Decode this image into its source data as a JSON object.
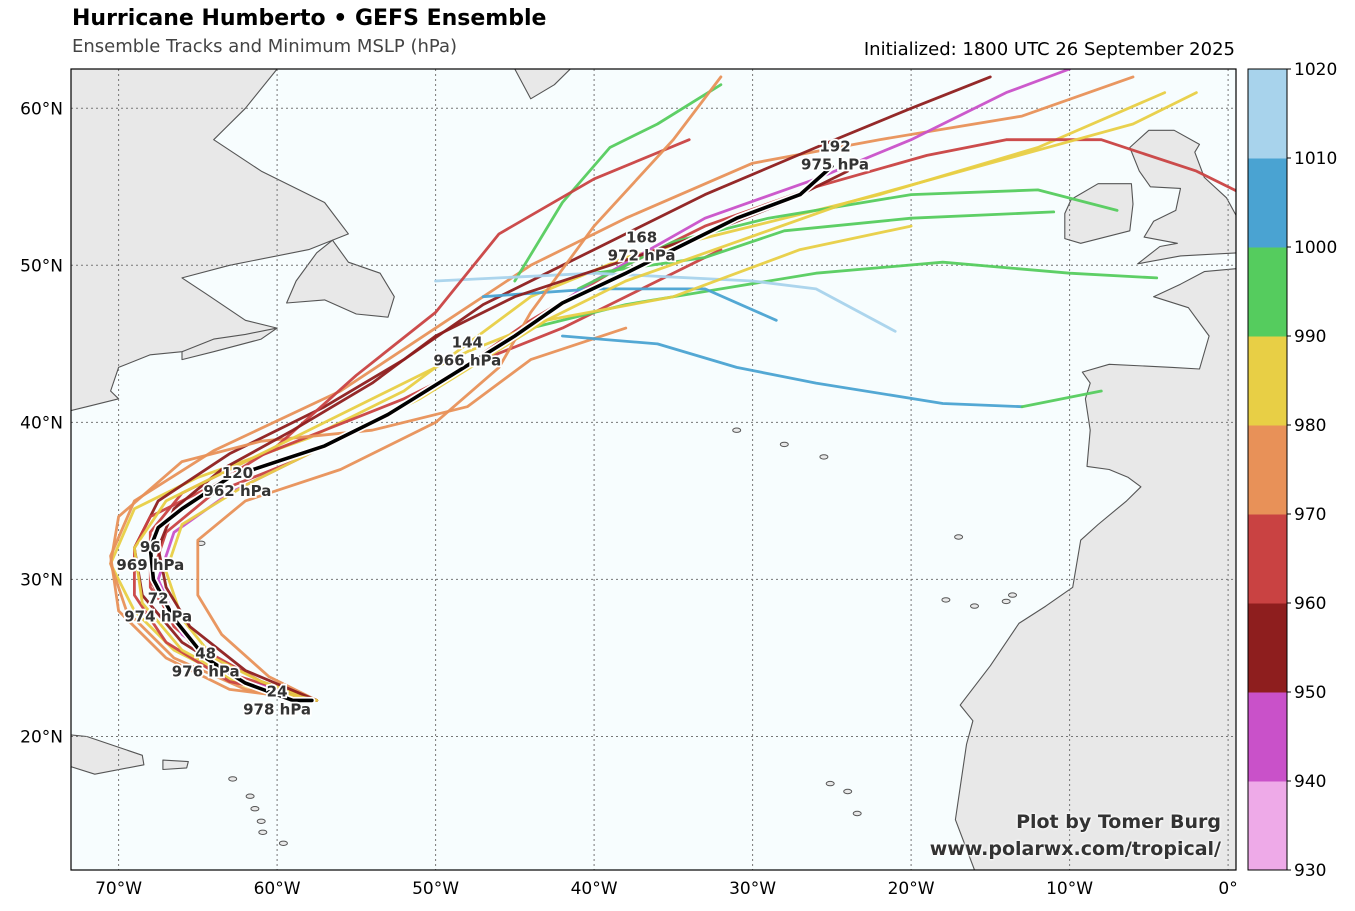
{
  "header": {
    "title": "Hurricane Humberto • GEFS Ensemble",
    "subtitle": "Ensemble Tracks and Minimum MSLP (hPa)",
    "initialized": "Initialized: 1800 UTC 26 September 2025"
  },
  "credit": {
    "line1": "Plot by Tomer Burg",
    "line2": "www.polarwx.com/tropical/"
  },
  "map": {
    "extent": {
      "lon": [
        -73,
        0.5
      ],
      "lat": [
        11.5,
        62.5
      ]
    },
    "lon_ticks": [
      {
        "lon": -70,
        "label": "70°W"
      },
      {
        "lon": -60,
        "label": "60°W"
      },
      {
        "lon": -50,
        "label": "50°W"
      },
      {
        "lon": -40,
        "label": "40°W"
      },
      {
        "lon": -30,
        "label": "30°W"
      },
      {
        "lon": -20,
        "label": "20°W"
      },
      {
        "lon": -10,
        "label": "10°W"
      },
      {
        "lon": 0,
        "label": "0°"
      }
    ],
    "lat_ticks": [
      {
        "lat": 20,
        "label": "20°N"
      },
      {
        "lat": 30,
        "label": "30°N"
      },
      {
        "lat": 40,
        "label": "40°N"
      },
      {
        "lat": 50,
        "label": "50°N"
      },
      {
        "lat": 60,
        "label": "60°N"
      }
    ],
    "ocean_color": "#f7fdfe",
    "land_color": "#e8e8e8",
    "grid": "dotted"
  },
  "colorbar": {
    "levels": [
      930,
      940,
      950,
      960,
      970,
      980,
      990,
      1000,
      1010,
      1020
    ],
    "colors": [
      "#eeaae8",
      "#c951c9",
      "#8e1e1e",
      "#c94242",
      "#e89158",
      "#e8cf45",
      "#55cc5e",
      "#4aa3d2",
      "#a8d3ec"
    ],
    "labels": [
      "930",
      "940",
      "950",
      "960",
      "970",
      "980",
      "990",
      "1000",
      "1010",
      "1020"
    ]
  },
  "mean_track": {
    "color": "#000000",
    "points": [
      [
        -57.8,
        22.3
      ],
      [
        -59,
        22.3
      ],
      [
        -62,
        23.4
      ],
      [
        -64.5,
        25
      ],
      [
        -66.5,
        27.5
      ],
      [
        -67.8,
        30
      ],
      [
        -68,
        32
      ],
      [
        -67.5,
        33.3
      ],
      [
        -66,
        34.5
      ],
      [
        -63,
        36.5
      ],
      [
        -60,
        37.5
      ],
      [
        -57,
        38.5
      ],
      [
        -53,
        40.5
      ],
      [
        -49,
        43
      ],
      [
        -45,
        45.5
      ],
      [
        -42,
        47.6
      ],
      [
        -38,
        49.5
      ],
      [
        -35,
        51
      ],
      [
        -31,
        53
      ],
      [
        -27,
        54.5
      ],
      [
        -25,
        56.3
      ]
    ],
    "labels": [
      {
        "lon": -60,
        "lat": 22.3,
        "hour": "24",
        "mslp": "978 hPa"
      },
      {
        "lon": -64.5,
        "lat": 24.7,
        "hour": "48",
        "mslp": "976 hPa"
      },
      {
        "lon": -67.5,
        "lat": 28.2,
        "hour": "72",
        "mslp": "974 hPa"
      },
      {
        "lon": -68,
        "lat": 31.5,
        "hour": "96",
        "mslp": "969 hPa"
      },
      {
        "lon": -62.5,
        "lat": 36.2,
        "hour": "120",
        "mslp": "962 hPa"
      },
      {
        "lon": -48,
        "lat": 44.5,
        "hour": "144",
        "mslp": "966 hPa"
      },
      {
        "lon": -37,
        "lat": 51.2,
        "hour": "168",
        "mslp": "972 hPa"
      },
      {
        "lon": -24.8,
        "lat": 57,
        "hour": "192",
        "mslp": "975 hPa"
      }
    ]
  },
  "ensemble_tracks": [
    {
      "color": "#e8cf45",
      "points": [
        [
          -57.5,
          22.3
        ],
        [
          -62,
          23.2
        ],
        [
          -66.5,
          25.5
        ],
        [
          -69,
          28
        ],
        [
          -70.5,
          31
        ],
        [
          -69,
          34.5
        ],
        [
          -65,
          36.5
        ],
        [
          -58,
          39
        ],
        [
          -52,
          42
        ],
        [
          -48,
          45
        ],
        [
          -44,
          48
        ],
        [
          -38,
          50.5
        ],
        [
          -30,
          52.5
        ],
        [
          -22,
          54.5
        ],
        [
          -12,
          57.5
        ],
        [
          -4,
          61
        ]
      ]
    },
    {
      "color": "#e89158",
      "points": [
        [
          -57.5,
          22.3
        ],
        [
          -63,
          23
        ],
        [
          -67,
          25
        ],
        [
          -70,
          28
        ],
        [
          -70.5,
          31.5
        ],
        [
          -69,
          35
        ],
        [
          -64,
          38.2
        ],
        [
          -56,
          42
        ],
        [
          -50,
          46
        ],
        [
          -44,
          50
        ],
        [
          -38,
          53
        ],
        [
          -30,
          56.5
        ],
        [
          -22,
          58
        ],
        [
          -13,
          59.5
        ],
        [
          -6,
          62
        ]
      ]
    },
    {
      "color": "#c94242",
      "points": [
        [
          -57.5,
          22.3
        ],
        [
          -63,
          24
        ],
        [
          -66.5,
          27
        ],
        [
          -68,
          30
        ],
        [
          -67,
          33
        ],
        [
          -64,
          35.5
        ],
        [
          -59,
          37.5
        ],
        [
          -54,
          40
        ],
        [
          -49,
          43
        ],
        [
          -44,
          46.5
        ],
        [
          -39,
          49.5
        ],
        [
          -33,
          52.5
        ],
        [
          -26,
          55
        ],
        [
          -19,
          57
        ],
        [
          -14,
          58
        ],
        [
          -8,
          58
        ],
        [
          -2,
          56
        ],
        [
          1,
          54.5
        ]
      ]
    },
    {
      "color": "#8e1e1e",
      "points": [
        [
          -57.5,
          22.3
        ],
        [
          -62,
          23.5
        ],
        [
          -66,
          26
        ],
        [
          -68.5,
          29
        ],
        [
          -69,
          32
        ],
        [
          -67.5,
          35
        ],
        [
          -63,
          38
        ],
        [
          -57,
          41
        ],
        [
          -52,
          44
        ],
        [
          -47,
          47.5
        ],
        [
          -40,
          51
        ],
        [
          -33,
          54.5
        ],
        [
          -26,
          57.5
        ],
        [
          -20,
          60
        ],
        [
          -15,
          62
        ]
      ]
    },
    {
      "color": "#c94242",
      "points": [
        [
          -57.5,
          22.3
        ],
        [
          -61,
          23.5
        ],
        [
          -65.5,
          26
        ],
        [
          -68,
          29.5
        ],
        [
          -68,
          33
        ],
        [
          -66,
          35.5
        ],
        [
          -62,
          37.5
        ],
        [
          -57,
          39.5
        ],
        [
          -52,
          41.5
        ],
        [
          -47,
          44
        ],
        [
          -42,
          46
        ],
        [
          -37,
          48.5
        ],
        [
          -32,
          51
        ]
      ]
    },
    {
      "color": "#e89158",
      "points": [
        [
          -57.5,
          22.3
        ],
        [
          -62,
          23
        ],
        [
          -66.5,
          25
        ],
        [
          -69.5,
          28
        ],
        [
          -70.5,
          31
        ],
        [
          -70,
          34
        ],
        [
          -66,
          37.5
        ],
        [
          -61,
          38.8
        ],
        [
          -54,
          39.5
        ],
        [
          -48,
          41
        ],
        [
          -44,
          44
        ],
        [
          -38,
          46
        ]
      ]
    },
    {
      "color": "#c951c9",
      "points": [
        [
          -57.5,
          22.3
        ],
        [
          -62,
          23.5
        ],
        [
          -66,
          26.5
        ],
        [
          -67.5,
          30
        ],
        [
          -66.5,
          33
        ],
        [
          -63,
          35.5
        ],
        [
          -58,
          38
        ],
        [
          -52,
          41
        ],
        [
          -46,
          45
        ],
        [
          -40,
          49
        ],
        [
          -33,
          53
        ],
        [
          -26,
          55.5
        ],
        [
          -20,
          58
        ],
        [
          -14,
          61
        ],
        [
          -10,
          62.5
        ]
      ]
    },
    {
      "color": "#55cc5e",
      "points": [
        [
          -44,
          46
        ],
        [
          -38,
          47.5
        ],
        [
          -32,
          48.5
        ],
        [
          -26,
          49.5
        ],
        [
          -18,
          50.2
        ],
        [
          -10,
          49.5
        ],
        [
          -4.5,
          49.2
        ]
      ]
    },
    {
      "color": "#55cc5e",
      "points": [
        [
          -45,
          49
        ],
        [
          -42,
          54
        ],
        [
          -39,
          57.5
        ],
        [
          -36,
          59
        ],
        [
          -32,
          61.5
        ]
      ]
    },
    {
      "color": "#55cc5e",
      "points": [
        [
          -41,
          48.5
        ],
        [
          -35,
          51.5
        ],
        [
          -29,
          53
        ],
        [
          -20,
          54.5
        ],
        [
          -12,
          54.8
        ],
        [
          -7,
          53.5
        ]
      ]
    },
    {
      "color": "#55cc5e",
      "points": [
        [
          -40,
          49.5
        ],
        [
          -33,
          50.5
        ],
        [
          -28,
          52.2
        ],
        [
          -20,
          53
        ],
        [
          -11,
          53.4
        ]
      ]
    },
    {
      "color": "#4aa3d2",
      "points": [
        [
          -42,
          45.5
        ],
        [
          -36,
          45
        ],
        [
          -31,
          43.5
        ],
        [
          -26,
          42.5
        ],
        [
          -18,
          41.2
        ],
        [
          -13,
          41
        ]
      ]
    },
    {
      "color": "#55cc5e",
      "points": [
        [
          -13,
          41
        ],
        [
          -8,
          42
        ]
      ]
    },
    {
      "color": "#a8d3ec",
      "points": [
        [
          -50,
          49
        ],
        [
          -40,
          49.5
        ],
        [
          -30,
          49
        ],
        [
          -26,
          48.5
        ],
        [
          -21,
          45.8
        ]
      ]
    },
    {
      "color": "#4aa3d2",
      "points": [
        [
          -47,
          48
        ],
        [
          -40,
          48.5
        ],
        [
          -33,
          48.5
        ],
        [
          -28.5,
          46.5
        ]
      ]
    },
    {
      "color": "#e8cf45",
      "points": [
        [
          -57.5,
          22.3
        ],
        [
          -61,
          23.5
        ],
        [
          -64,
          25
        ],
        [
          -66,
          27.5
        ],
        [
          -67,
          30.5
        ],
        [
          -66,
          33.5
        ],
        [
          -62,
          36
        ],
        [
          -56,
          39
        ],
        [
          -51,
          41.5
        ],
        [
          -47,
          44
        ],
        [
          -43,
          46.5
        ],
        [
          -38,
          49
        ],
        [
          -31,
          51.5
        ],
        [
          -24,
          54
        ],
        [
          -15,
          56.5
        ],
        [
          -6,
          59
        ],
        [
          -2,
          61
        ]
      ]
    },
    {
      "color": "#c94242",
      "points": [
        [
          -57.5,
          22.3
        ],
        [
          -63,
          23.5
        ],
        [
          -67,
          26
        ],
        [
          -69,
          29
        ],
        [
          -69,
          32
        ],
        [
          -68,
          34
        ],
        [
          -64,
          36
        ],
        [
          -60,
          38.5
        ],
        [
          -55,
          43
        ],
        [
          -50,
          47
        ],
        [
          -46,
          52
        ],
        [
          -40,
          55.5
        ],
        [
          -34,
          58
        ]
      ]
    },
    {
      "color": "#e89158",
      "points": [
        [
          -57.5,
          22.3
        ],
        [
          -60.5,
          23.8
        ],
        [
          -63.5,
          26.5
        ],
        [
          -65,
          29
        ],
        [
          -65,
          32.5
        ],
        [
          -62,
          35
        ],
        [
          -56,
          37
        ],
        [
          -50,
          40
        ],
        [
          -46,
          43.5
        ],
        [
          -44,
          47
        ],
        [
          -40,
          52.5
        ],
        [
          -35,
          58
        ],
        [
          -32,
          62
        ]
      ]
    },
    {
      "color": "#8e1e1e",
      "points": [
        [
          -57.5,
          22.3
        ],
        [
          -62,
          24.2
        ],
        [
          -65.5,
          27
        ],
        [
          -67,
          29.5
        ],
        [
          -67.5,
          32
        ],
        [
          -66.5,
          34.5
        ],
        [
          -63.5,
          37
        ],
        [
          -59,
          39.5
        ],
        [
          -54,
          42.5
        ],
        [
          -50,
          45.5
        ],
        [
          -45,
          48
        ],
        [
          -39,
          50
        ],
        [
          -33,
          52
        ],
        [
          -28,
          54
        ],
        [
          -24,
          56
        ]
      ]
    },
    {
      "color": "#e8cf45",
      "points": [
        [
          -57.5,
          22.3
        ],
        [
          -62,
          23.3
        ],
        [
          -66,
          25.5
        ],
        [
          -68.5,
          28.5
        ],
        [
          -69,
          32
        ],
        [
          -67,
          35
        ],
        [
          -63,
          37
        ],
        [
          -58,
          39.5
        ],
        [
          -53,
          42
        ],
        [
          -48,
          44.5
        ],
        [
          -43,
          46.5
        ],
        [
          -35,
          48
        ],
        [
          -27,
          51
        ],
        [
          -20,
          52.5
        ]
      ]
    }
  ]
}
